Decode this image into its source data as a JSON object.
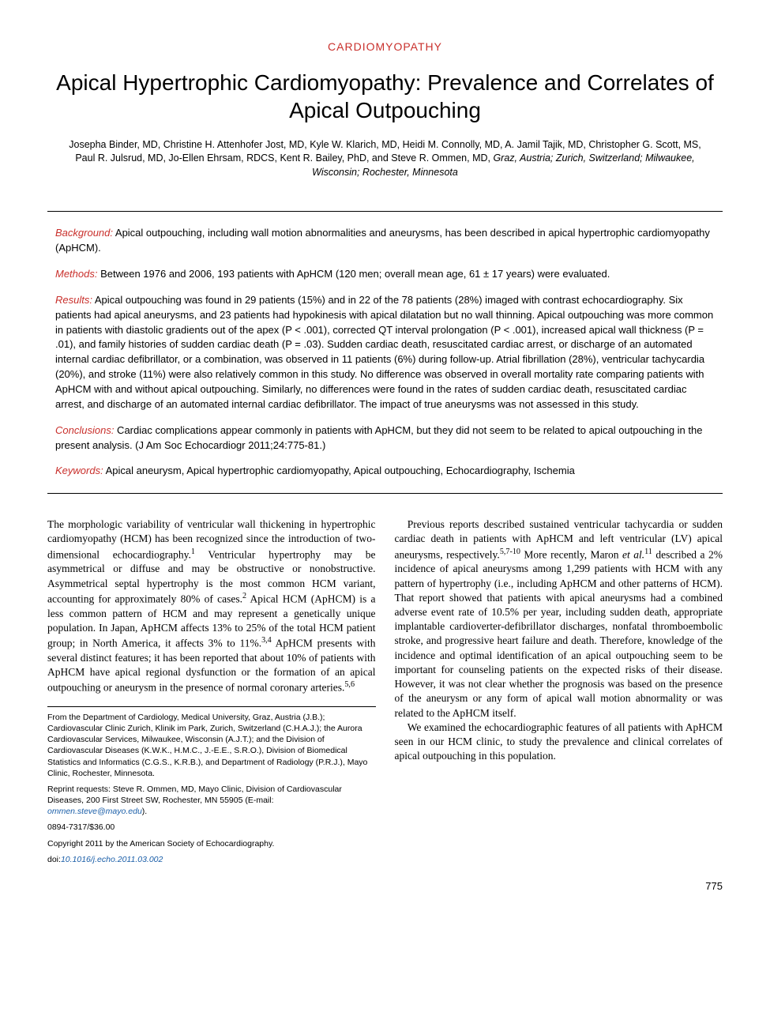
{
  "section_label": "CARDIOMYOPATHY",
  "title": "Apical Hypertrophic Cardiomyopathy: Prevalence and Correlates of Apical Outpouching",
  "authors_line": "Josepha Binder, MD, Christine H. Attenhofer Jost, MD, Kyle W. Klarich, MD, Heidi M. Connolly, MD, A. Jamil Tajik, MD, Christopher G. Scott, MS, Paul R. Julsrud, MD, Jo-Ellen Ehrsam, RDCS, Kent R. Bailey, PhD, and Steve R. Ommen, MD,",
  "affiliations": " Graz, Austria; Zurich, Switzerland; Milwaukee, Wisconsin; Rochester, Minnesota",
  "abstract": {
    "background": {
      "label": "Background:",
      "text": " Apical outpouching, including wall motion abnormalities and aneurysms, has been described in apical hypertrophic cardiomyopathy (ApHCM)."
    },
    "methods": {
      "label": "Methods:",
      "text": " Between 1976 and 2006, 193 patients with ApHCM (120 men; overall mean age, 61 ± 17 years) were evaluated."
    },
    "results": {
      "label": "Results:",
      "text": " Apical outpouching was found in 29 patients (15%) and in 22 of the 78 patients (28%) imaged with contrast echocardiography. Six patients had apical aneurysms, and 23 patients had hypokinesis with apical dilatation but no wall thinning. Apical outpouching was more common in patients with diastolic gradients out of the apex (P < .001), corrected QT interval prolongation (P < .001), increased apical wall thickness (P = .01), and family histories of sudden cardiac death (P = .03). Sudden cardiac death, resuscitated cardiac arrest, or discharge of an automated internal cardiac defibrillator, or a combination, was observed in 11 patients (6%) during follow-up. Atrial fibrillation (28%), ventricular tachycardia (20%), and stroke (11%) were also relatively common in this study. No difference was observed in overall mortality rate comparing patients with ApHCM with and without apical outpouching. Similarly, no differences were found in the rates of sudden cardiac death, resuscitated cardiac arrest, and discharge of an automated internal cardiac defibrillator. The impact of true aneurysms was not assessed in this study."
    },
    "conclusions": {
      "label": "Conclusions:",
      "text": " Cardiac complications appear commonly in patients with ApHCM, but they did not seem to be related to apical outpouching in the present analysis. (J Am Soc Echocardiogr 2011;24:775-81.)"
    },
    "keywords": {
      "label": "Keywords:",
      "text": " Apical aneurysm, Apical hypertrophic cardiomyopathy, Apical outpouching, Echocardiography, Ischemia"
    }
  },
  "body": {
    "p1a": "The morphologic variability of ventricular wall thickening in hypertrophic cardiomyopathy (HCM) has been recognized since the introduction of two-dimensional echocardiography.",
    "p1_ref1": "1",
    "p1b": " Ventricular hypertrophy may be asymmetrical or diffuse and may be obstructive or nonobstructive. Asymmetrical septal hypertrophy is the most common HCM variant, accounting for approximately 80% of cases.",
    "p1_ref2": "2",
    "p1c": " Apical HCM (ApHCM) is a less common pattern of HCM and may represent a genetically unique population. In Japan, ApHCM affects 13% to 25% of the total HCM patient group; in North America, it affects 3% to 11%.",
    "p1_ref3": "3,4",
    "p1d": " ApHCM presents with several distinct features; it has been reported that about 10% of patients with ApHCM have apical regional dysfunction or the formation of an apical outpouching or aneurysm in the presence of normal coronary arteries.",
    "p1_ref4": "5,6",
    "p2a": "Previous reports described sustained ventricular tachycardia or sudden cardiac death in patients with ApHCM and left ventricular (LV) apical aneurysms, respectively.",
    "p2_ref1": "5,7-10",
    "p2b": " More recently, Maron ",
    "p2_etal": "et al.",
    "p2_ref2": "11",
    "p2c": " described a 2% incidence of apical aneurysms among 1,299 patients with HCM with any pattern of hypertrophy (i.e., including ApHCM and other patterns of HCM). That report showed that patients with apical aneurysms had a combined adverse event rate of 10.5% per year, including sudden death, appropriate implantable cardioverter-defibrillator discharges, nonfatal thromboembolic stroke, and progressive heart failure and death. Therefore, knowledge of the incidence and optimal identification of an apical outpouching seem to be important for counseling patients on the expected risks of their disease. However, it was not clear whether the prognosis was based on the presence of the aneurysm or any form of apical wall motion abnormality or was related to the ApHCM itself.",
    "p3": "We examined the echocardiographic features of all patients with ApHCM seen in our HCM clinic, to study the prevalence and clinical correlates of apical outpouching in this population."
  },
  "footnotes": {
    "from": "From the Department of Cardiology, Medical University, Graz, Austria (J.B.); Cardiovascular Clinic Zurich, Klinik im Park, Zurich, Switzerland (C.H.A.J.); the Aurora Cardiovascular Services, Milwaukee, Wisconsin (A.J.T.); and the Division of Cardiovascular Diseases (K.W.K., H.M.C., J.-E.E., S.R.O.), Division of Biomedical Statistics and Informatics (C.G.S., K.R.B.), and Department of Radiology (P.R.J.), Mayo Clinic, Rochester, Minnesota.",
    "reprint_pre": "Reprint requests: Steve R. Ommen, MD, Mayo Clinic, Division of Cardiovascular Diseases, 200 First Street SW, Rochester, MN 55905 (E-mail: ",
    "reprint_email": "ommen.steve@mayo.edu",
    "reprint_post": ").",
    "issn": "0894-7317/$36.00",
    "copyright": "Copyright 2011 by the American Society of Echocardiography.",
    "doi_label": "doi:",
    "doi": "10.1016/j.echo.2011.03.002"
  },
  "page_number": "775",
  "colors": {
    "accent": "#c9302c",
    "link": "#1a5ea8",
    "text": "#000000",
    "background": "#ffffff"
  }
}
